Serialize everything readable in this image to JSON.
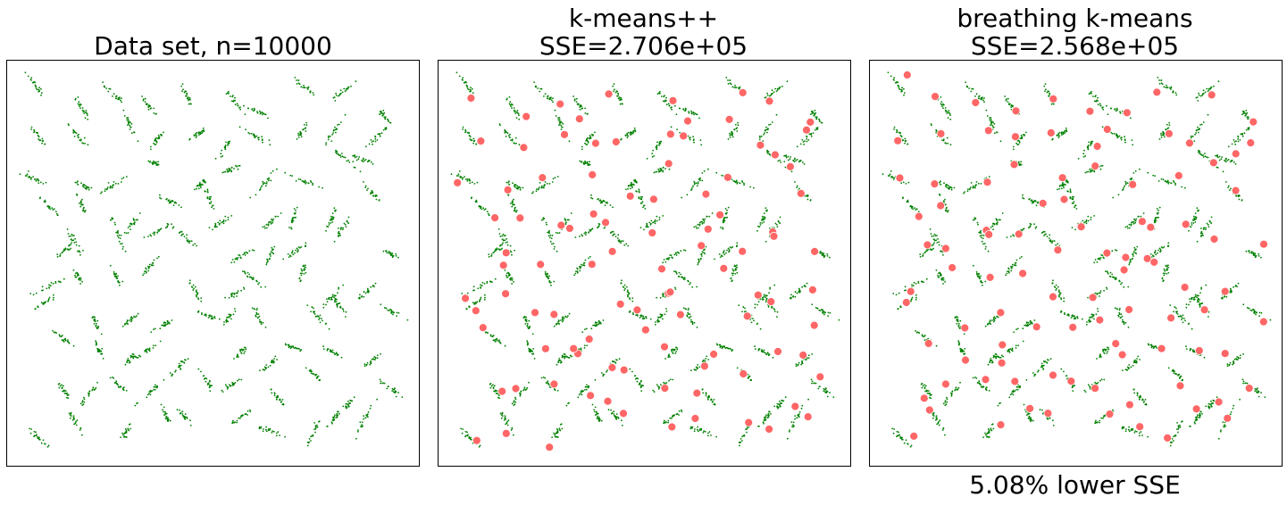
{
  "colors": {
    "data_points": "#008000",
    "centroids": "#ff6666",
    "centroid_edge": "#ffffff",
    "axes": "#000000"
  },
  "chart_data": [
    {
      "type": "scatter",
      "title": "Data set, n=10000",
      "subtitle": "",
      "xlabel": "",
      "ylabel": "",
      "series": [
        {
          "role": "data",
          "marker": "small green dots",
          "count": 10000
        }
      ]
    },
    {
      "type": "scatter",
      "title": "k-means++",
      "subtitle": "SSE=2.706e+05",
      "xlabel": "",
      "ylabel": "",
      "series": [
        {
          "role": "data",
          "marker": "small green dots"
        },
        {
          "role": "centroids",
          "marker": "red circles",
          "count": 100
        }
      ]
    },
    {
      "type": "scatter",
      "title": "breathing k-means",
      "subtitle": "SSE=2.568e+05",
      "xlabel": "",
      "ylabel": "",
      "annotation": "5.08% lower SSE",
      "series": [
        {
          "role": "data",
          "marker": "small green dots"
        },
        {
          "role": "centroids",
          "marker": "red circles",
          "count": 100
        }
      ]
    }
  ]
}
